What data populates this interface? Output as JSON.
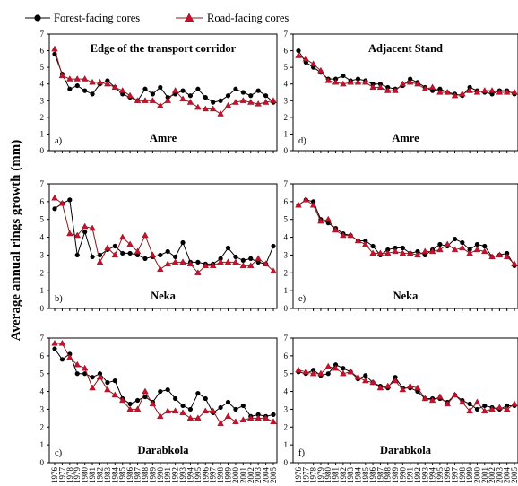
{
  "legend": {
    "forest_label": "Forest-facing cores",
    "road_label": "Road-facing cores"
  },
  "y_axis_label": "Average annual rings growth (mm)",
  "colors": {
    "forest": "#000000",
    "road": "#c8102e",
    "road_line": "#8b1a1a"
  },
  "chart_data": [
    {
      "type": "line",
      "panel": "a)",
      "title": "Edge of the transport corridor",
      "site": "Amre",
      "x": [
        1976,
        1977,
        1978,
        1979,
        1980,
        1981,
        1982,
        1983,
        1984,
        1985,
        1986,
        1987,
        1988,
        1989,
        1990,
        1991,
        1992,
        1993,
        1994,
        1995,
        1996,
        1997,
        1998,
        1999,
        2000,
        2001,
        2002,
        2003,
        2004,
        2005
      ],
      "ylim": [
        0,
        7
      ],
      "yticks": [
        0,
        1,
        2,
        3,
        4,
        5,
        6,
        7
      ],
      "series": [
        {
          "name": "Forest-facing cores",
          "values": [
            5.8,
            4.6,
            3.7,
            3.9,
            3.6,
            3.4,
            4.0,
            4.2,
            3.8,
            3.4,
            3.2,
            3.0,
            3.7,
            3.4,
            3.8,
            3.2,
            3.4,
            3.6,
            3.3,
            3.7,
            3.2,
            2.9,
            3.0,
            3.3,
            3.7,
            3.5,
            3.3,
            3.6,
            3.3,
            2.9
          ]
        },
        {
          "name": "Road-facing cores",
          "values": [
            6.1,
            4.5,
            4.3,
            4.3,
            4.3,
            4.1,
            4.1,
            4.0,
            3.8,
            3.6,
            3.3,
            3.0,
            3.0,
            3.0,
            2.7,
            3.0,
            3.6,
            3.1,
            2.9,
            2.6,
            2.5,
            2.5,
            2.2,
            2.7,
            2.9,
            3.0,
            2.9,
            2.8,
            2.9,
            3.0
          ]
        }
      ]
    },
    {
      "type": "line",
      "panel": "d)",
      "title": "Adjacent Stand",
      "site": "Amre",
      "x": [
        1976,
        1977,
        1978,
        1979,
        1980,
        1981,
        1982,
        1983,
        1984,
        1985,
        1986,
        1987,
        1988,
        1989,
        1990,
        1991,
        1992,
        1993,
        1994,
        1995,
        1996,
        1997,
        1998,
        1999,
        2000,
        2001,
        2002,
        2003,
        2004,
        2005
      ],
      "ylim": [
        0,
        7
      ],
      "yticks": [
        0,
        1,
        2,
        3,
        4,
        5,
        6,
        7
      ],
      "series": [
        {
          "name": "Forest-facing cores",
          "values": [
            6.0,
            5.3,
            5.0,
            4.7,
            4.3,
            4.3,
            4.5,
            4.2,
            4.3,
            4.2,
            4.0,
            4.0,
            3.8,
            3.7,
            3.9,
            4.3,
            4.1,
            3.8,
            3.6,
            3.7,
            3.5,
            3.4,
            3.3,
            3.8,
            3.6,
            3.5,
            3.4,
            3.6,
            3.6,
            3.4
          ]
        },
        {
          "name": "Road-facing cores",
          "values": [
            5.7,
            5.5,
            5.2,
            4.8,
            4.2,
            4.1,
            4.0,
            4.1,
            4.1,
            4.1,
            3.8,
            3.8,
            3.6,
            3.6,
            4.0,
            4.1,
            4.0,
            3.7,
            3.8,
            3.5,
            3.5,
            3.3,
            3.4,
            3.6,
            3.5,
            3.6,
            3.6,
            3.5,
            3.5,
            3.5
          ]
        }
      ]
    },
    {
      "type": "line",
      "panel": "b)",
      "title": "",
      "site": "Neka",
      "x": [
        1976,
        1977,
        1978,
        1979,
        1980,
        1981,
        1982,
        1983,
        1984,
        1985,
        1986,
        1987,
        1988,
        1989,
        1990,
        1991,
        1992,
        1993,
        1994,
        1995,
        1996,
        1997,
        1998,
        1999,
        2000,
        2001,
        2002,
        2003,
        2004,
        2005
      ],
      "ylim": [
        0,
        7
      ],
      "yticks": [
        0,
        1,
        2,
        3,
        4,
        5,
        6,
        7
      ],
      "series": [
        {
          "name": "Forest-facing cores",
          "values": [
            5.6,
            5.9,
            6.1,
            3.0,
            4.3,
            2.9,
            3.0,
            3.3,
            3.5,
            3.1,
            3.1,
            3.0,
            2.8,
            2.9,
            3.0,
            3.2,
            2.9,
            3.7,
            2.6,
            2.6,
            2.5,
            2.5,
            2.8,
            3.4,
            2.9,
            2.7,
            2.8,
            2.6,
            2.5,
            3.5
          ]
        },
        {
          "name": "Road-facing cores",
          "values": [
            6.2,
            5.9,
            4.2,
            4.1,
            4.6,
            4.5,
            2.6,
            3.4,
            3.0,
            4.0,
            3.6,
            3.2,
            4.1,
            3.0,
            2.2,
            2.5,
            2.6,
            2.6,
            2.5,
            2.0,
            2.4,
            2.4,
            2.6,
            2.6,
            2.6,
            2.4,
            2.4,
            2.8,
            2.5,
            2.1
          ]
        }
      ]
    },
    {
      "type": "line",
      "panel": "e)",
      "title": "",
      "site": "Neka",
      "x": [
        1976,
        1977,
        1978,
        1979,
        1980,
        1981,
        1982,
        1983,
        1984,
        1985,
        1986,
        1987,
        1988,
        1989,
        1990,
        1991,
        1992,
        1993,
        1994,
        1995,
        1996,
        1997,
        1998,
        1999,
        2000,
        2001,
        2002,
        2003,
        2004,
        2005
      ],
      "ylim": [
        0,
        7
      ],
      "yticks": [
        0,
        1,
        2,
        3,
        4,
        5,
        6,
        7
      ],
      "series": [
        {
          "name": "Forest-facing cores",
          "values": [
            5.8,
            6.1,
            6.0,
            5.0,
            4.8,
            4.5,
            4.2,
            4.1,
            3.8,
            3.8,
            3.5,
            3.0,
            3.3,
            3.4,
            3.4,
            3.1,
            3.2,
            3.0,
            3.3,
            3.6,
            3.5,
            3.9,
            3.7,
            3.3,
            3.6,
            3.5,
            2.9,
            3.0,
            3.1,
            2.4
          ]
        },
        {
          "name": "Road-facing cores",
          "values": [
            5.8,
            6.1,
            5.8,
            4.9,
            5.0,
            4.4,
            4.1,
            4.1,
            3.8,
            3.6,
            3.1,
            3.1,
            3.1,
            3.2,
            3.1,
            3.1,
            3.0,
            3.2,
            3.2,
            3.3,
            3.6,
            3.3,
            3.4,
            3.1,
            3.3,
            3.2,
            2.9,
            3.0,
            2.9,
            2.5
          ]
        }
      ]
    },
    {
      "type": "line",
      "panel": "c)",
      "title": "",
      "site": "Darabkola",
      "x": [
        1976,
        1977,
        1978,
        1979,
        1980,
        1981,
        1982,
        1983,
        1984,
        1985,
        1986,
        1987,
        1988,
        1989,
        1990,
        1991,
        1992,
        1993,
        1994,
        1995,
        1996,
        1997,
        1998,
        1999,
        2000,
        2001,
        2002,
        2003,
        2004,
        2005
      ],
      "ylim": [
        0,
        7
      ],
      "yticks": [
        0,
        1,
        2,
        3,
        4,
        5,
        6,
        7
      ],
      "series": [
        {
          "name": "Forest-facing cores",
          "values": [
            6.4,
            5.8,
            6.1,
            5.0,
            5.0,
            4.8,
            5.0,
            4.5,
            4.6,
            3.6,
            3.3,
            3.5,
            3.7,
            3.4,
            4.0,
            4.1,
            3.6,
            3.2,
            3.0,
            3.9,
            3.6,
            2.8,
            3.1,
            3.4,
            3.0,
            3.2,
            2.6,
            2.7,
            2.6,
            2.7
          ]
        },
        {
          "name": "Road-facing cores",
          "values": [
            6.7,
            6.7,
            5.9,
            5.5,
            5.3,
            4.2,
            4.8,
            4.1,
            3.8,
            3.5,
            3.0,
            3.0,
            4.0,
            3.3,
            2.6,
            2.9,
            2.9,
            2.8,
            2.5,
            2.5,
            2.9,
            2.9,
            2.2,
            2.6,
            2.3,
            2.4,
            2.5,
            2.5,
            2.5,
            2.3
          ]
        }
      ]
    },
    {
      "type": "line",
      "panel": "f)",
      "title": "",
      "site": "Darabkola",
      "x": [
        1976,
        1977,
        1978,
        1979,
        1980,
        1981,
        1982,
        1983,
        1984,
        1985,
        1986,
        1987,
        1988,
        1989,
        1990,
        1991,
        1992,
        1993,
        1994,
        1995,
        1996,
        1997,
        1998,
        1999,
        2000,
        2001,
        2002,
        2003,
        2004,
        2005
      ],
      "ylim": [
        0,
        7
      ],
      "yticks": [
        0,
        1,
        2,
        3,
        4,
        5,
        6,
        7
      ],
      "series": [
        {
          "name": "Forest-facing cores",
          "values": [
            5.1,
            5.0,
            5.2,
            4.9,
            5.0,
            5.5,
            5.3,
            5.1,
            4.7,
            4.9,
            4.5,
            4.3,
            4.2,
            4.8,
            4.2,
            4.2,
            4.0,
            3.6,
            3.6,
            3.6,
            3.4,
            3.8,
            3.5,
            3.3,
            3.0,
            3.2,
            3.1,
            3.0,
            3.2,
            3.2
          ]
        },
        {
          "name": "Road-facing cores",
          "values": [
            5.2,
            5.1,
            5.0,
            5.0,
            5.4,
            5.3,
            5.0,
            5.1,
            4.8,
            4.6,
            4.5,
            4.2,
            4.3,
            4.6,
            4.1,
            4.3,
            4.2,
            3.6,
            3.5,
            3.7,
            3.3,
            3.8,
            3.4,
            2.9,
            3.4,
            2.9,
            3.0,
            3.1,
            3.0,
            3.3
          ]
        }
      ]
    }
  ]
}
